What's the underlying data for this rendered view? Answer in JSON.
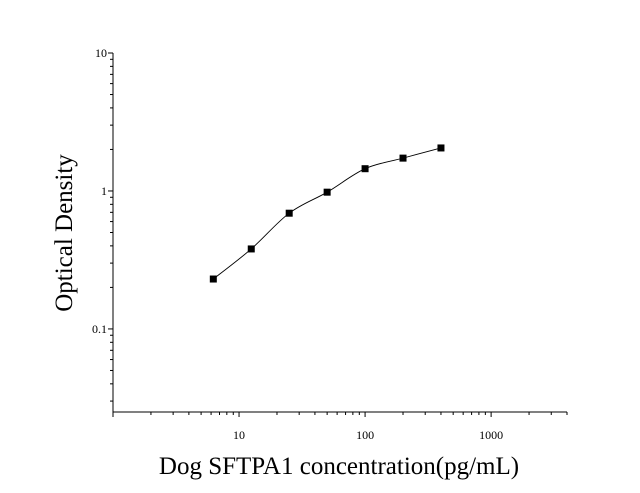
{
  "chart_data": {
    "type": "scatter",
    "title": "",
    "xlabel": "Dog SFTPA1 concentration(pg/mL)",
    "ylabel": "Optical Density",
    "xscale": "log",
    "yscale": "log",
    "xlim": [
      1,
      4000
    ],
    "ylim": [
      0.025,
      10
    ],
    "x_ticks": [
      "10",
      "100",
      "1000"
    ],
    "y_ticks": [
      "0.1",
      "1",
      "10"
    ],
    "grid": false,
    "legend": "none",
    "fit_line": "smooth curve through points",
    "series": [
      {
        "x": [
          6.25,
          12.5,
          25,
          50,
          100,
          200,
          400
        ],
        "y": [
          0.23,
          0.38,
          0.69,
          0.98,
          1.45,
          1.73,
          2.05
        ]
      }
    ]
  }
}
